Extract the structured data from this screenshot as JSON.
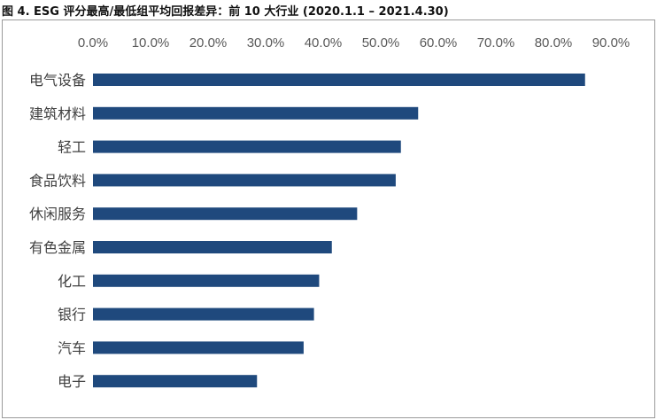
{
  "title": "图 4. ESG 评分最高/最低组平均回报差异：前 10 大行业 (2020.1.1 – 2021.4.30)",
  "chart_data": {
    "type": "bar",
    "orientation": "horizontal",
    "title": "图 4. ESG 评分最高/最低组平均回报差异：前 10 大行业 (2020.1.1 – 2021.4.30)",
    "xlabel": "",
    "ylabel": "",
    "xlim": [
      0,
      0.9
    ],
    "x_axis_position": "top",
    "x_ticks": [
      "0.0%",
      "10.0%",
      "20.0%",
      "30.0%",
      "40.0%",
      "50.0%",
      "60.0%",
      "70.0%",
      "80.0%",
      "90.0%"
    ],
    "grid": false,
    "legend": "none",
    "bar_color": "#1f497d",
    "categories": [
      "电气设备",
      "建筑材料",
      "轻工",
      "食品饮料",
      "休闲服务",
      "有色金属",
      "化工",
      "银行",
      "汽车",
      "电子"
    ],
    "values": [
      0.855,
      0.565,
      0.535,
      0.526,
      0.459,
      0.415,
      0.393,
      0.384,
      0.366,
      0.285
    ]
  }
}
